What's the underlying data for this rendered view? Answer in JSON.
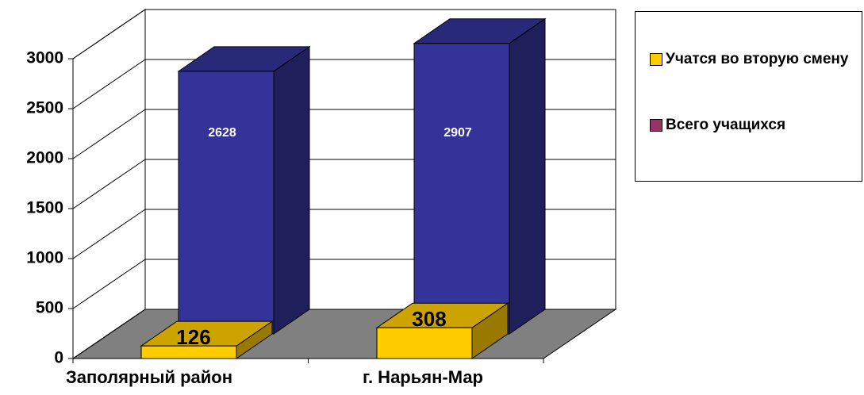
{
  "chart_data": {
    "type": "bar3d",
    "categories": [
      "Заполярный район",
      "г. Нарьян-Мар"
    ],
    "series": [
      {
        "name": "Учатся во вторую смену",
        "color": "#FFCC00",
        "values": [
          126,
          308
        ]
      },
      {
        "name": "Всего учащихся",
        "color": "#333399",
        "legend_color": "#993366",
        "values": [
          2628,
          2907
        ]
      }
    ],
    "ylim": [
      0,
      3000
    ],
    "yticks": [
      0,
      500,
      1000,
      1500,
      2000,
      2500,
      3000
    ],
    "grid": true,
    "legend": "right"
  }
}
